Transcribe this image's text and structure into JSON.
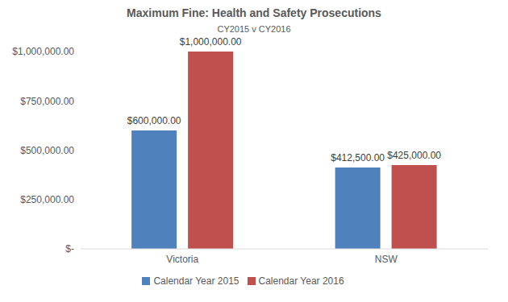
{
  "chart_data": {
    "type": "bar",
    "title": "Maximum Fine: Health and Safety Prosecutions",
    "subtitle": "CY2015 v CY2016",
    "categories": [
      "Victoria",
      "NSW"
    ],
    "series": [
      {
        "name": "Calendar Year 2015",
        "color": "#4f81bd",
        "values": [
          600000,
          412500
        ],
        "value_labels": [
          "$600,000.00",
          "$412,500.00"
        ]
      },
      {
        "name": "Calendar Year 2016",
        "color": "#c0504d",
        "values": [
          1000000,
          425000
        ],
        "value_labels": [
          "$1,000,000.00",
          "$425,000.00"
        ]
      }
    ],
    "ylim": [
      0,
      1000000
    ],
    "yticks": [
      {
        "value": 0,
        "label": "$-"
      },
      {
        "value": 250000,
        "label": "$250,000.00"
      },
      {
        "value": 500000,
        "label": "$500,000.00"
      },
      {
        "value": 750000,
        "label": "$750,000.00"
      },
      {
        "value": 1000000,
        "label": "$1,000,000.00"
      }
    ],
    "grid": false,
    "legend": "bottom",
    "data_labels": true
  }
}
